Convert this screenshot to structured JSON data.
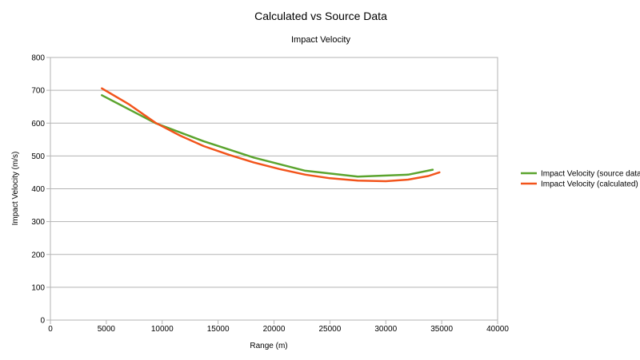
{
  "chart_data": {
    "type": "line",
    "title": "Calculated vs Source Data",
    "subtitle": "Impact Velocity",
    "xlabel": "Range (m)",
    "ylabel": "Impact Velocity (m/s)",
    "xlim": [
      0,
      40000
    ],
    "ylim": [
      0,
      800
    ],
    "xticks": [
      0,
      5000,
      10000,
      15000,
      20000,
      25000,
      30000,
      35000,
      40000
    ],
    "yticks": [
      0,
      100,
      200,
      300,
      400,
      500,
      600,
      700,
      800
    ],
    "grid": "horizontal",
    "legend_position": "right",
    "series": [
      {
        "name": "Impact Velocity (source data)",
        "color": "#5ba42e",
        "points": [
          [
            4600,
            685
          ],
          [
            9400,
            600
          ],
          [
            13700,
            545
          ],
          [
            18200,
            495
          ],
          [
            22800,
            455
          ],
          [
            27500,
            437
          ],
          [
            32000,
            443
          ],
          [
            34200,
            458
          ]
        ]
      },
      {
        "name": "Impact Velocity (calculated)",
        "color": "#f2541b",
        "points": [
          [
            4600,
            706
          ],
          [
            7000,
            658
          ],
          [
            9400,
            601
          ],
          [
            11600,
            562
          ],
          [
            13700,
            530
          ],
          [
            16000,
            503
          ],
          [
            18200,
            480
          ],
          [
            20500,
            460
          ],
          [
            22800,
            443
          ],
          [
            25000,
            432
          ],
          [
            27500,
            425
          ],
          [
            30000,
            423
          ],
          [
            32000,
            428
          ],
          [
            33800,
            439
          ],
          [
            34800,
            450
          ]
        ]
      }
    ]
  }
}
